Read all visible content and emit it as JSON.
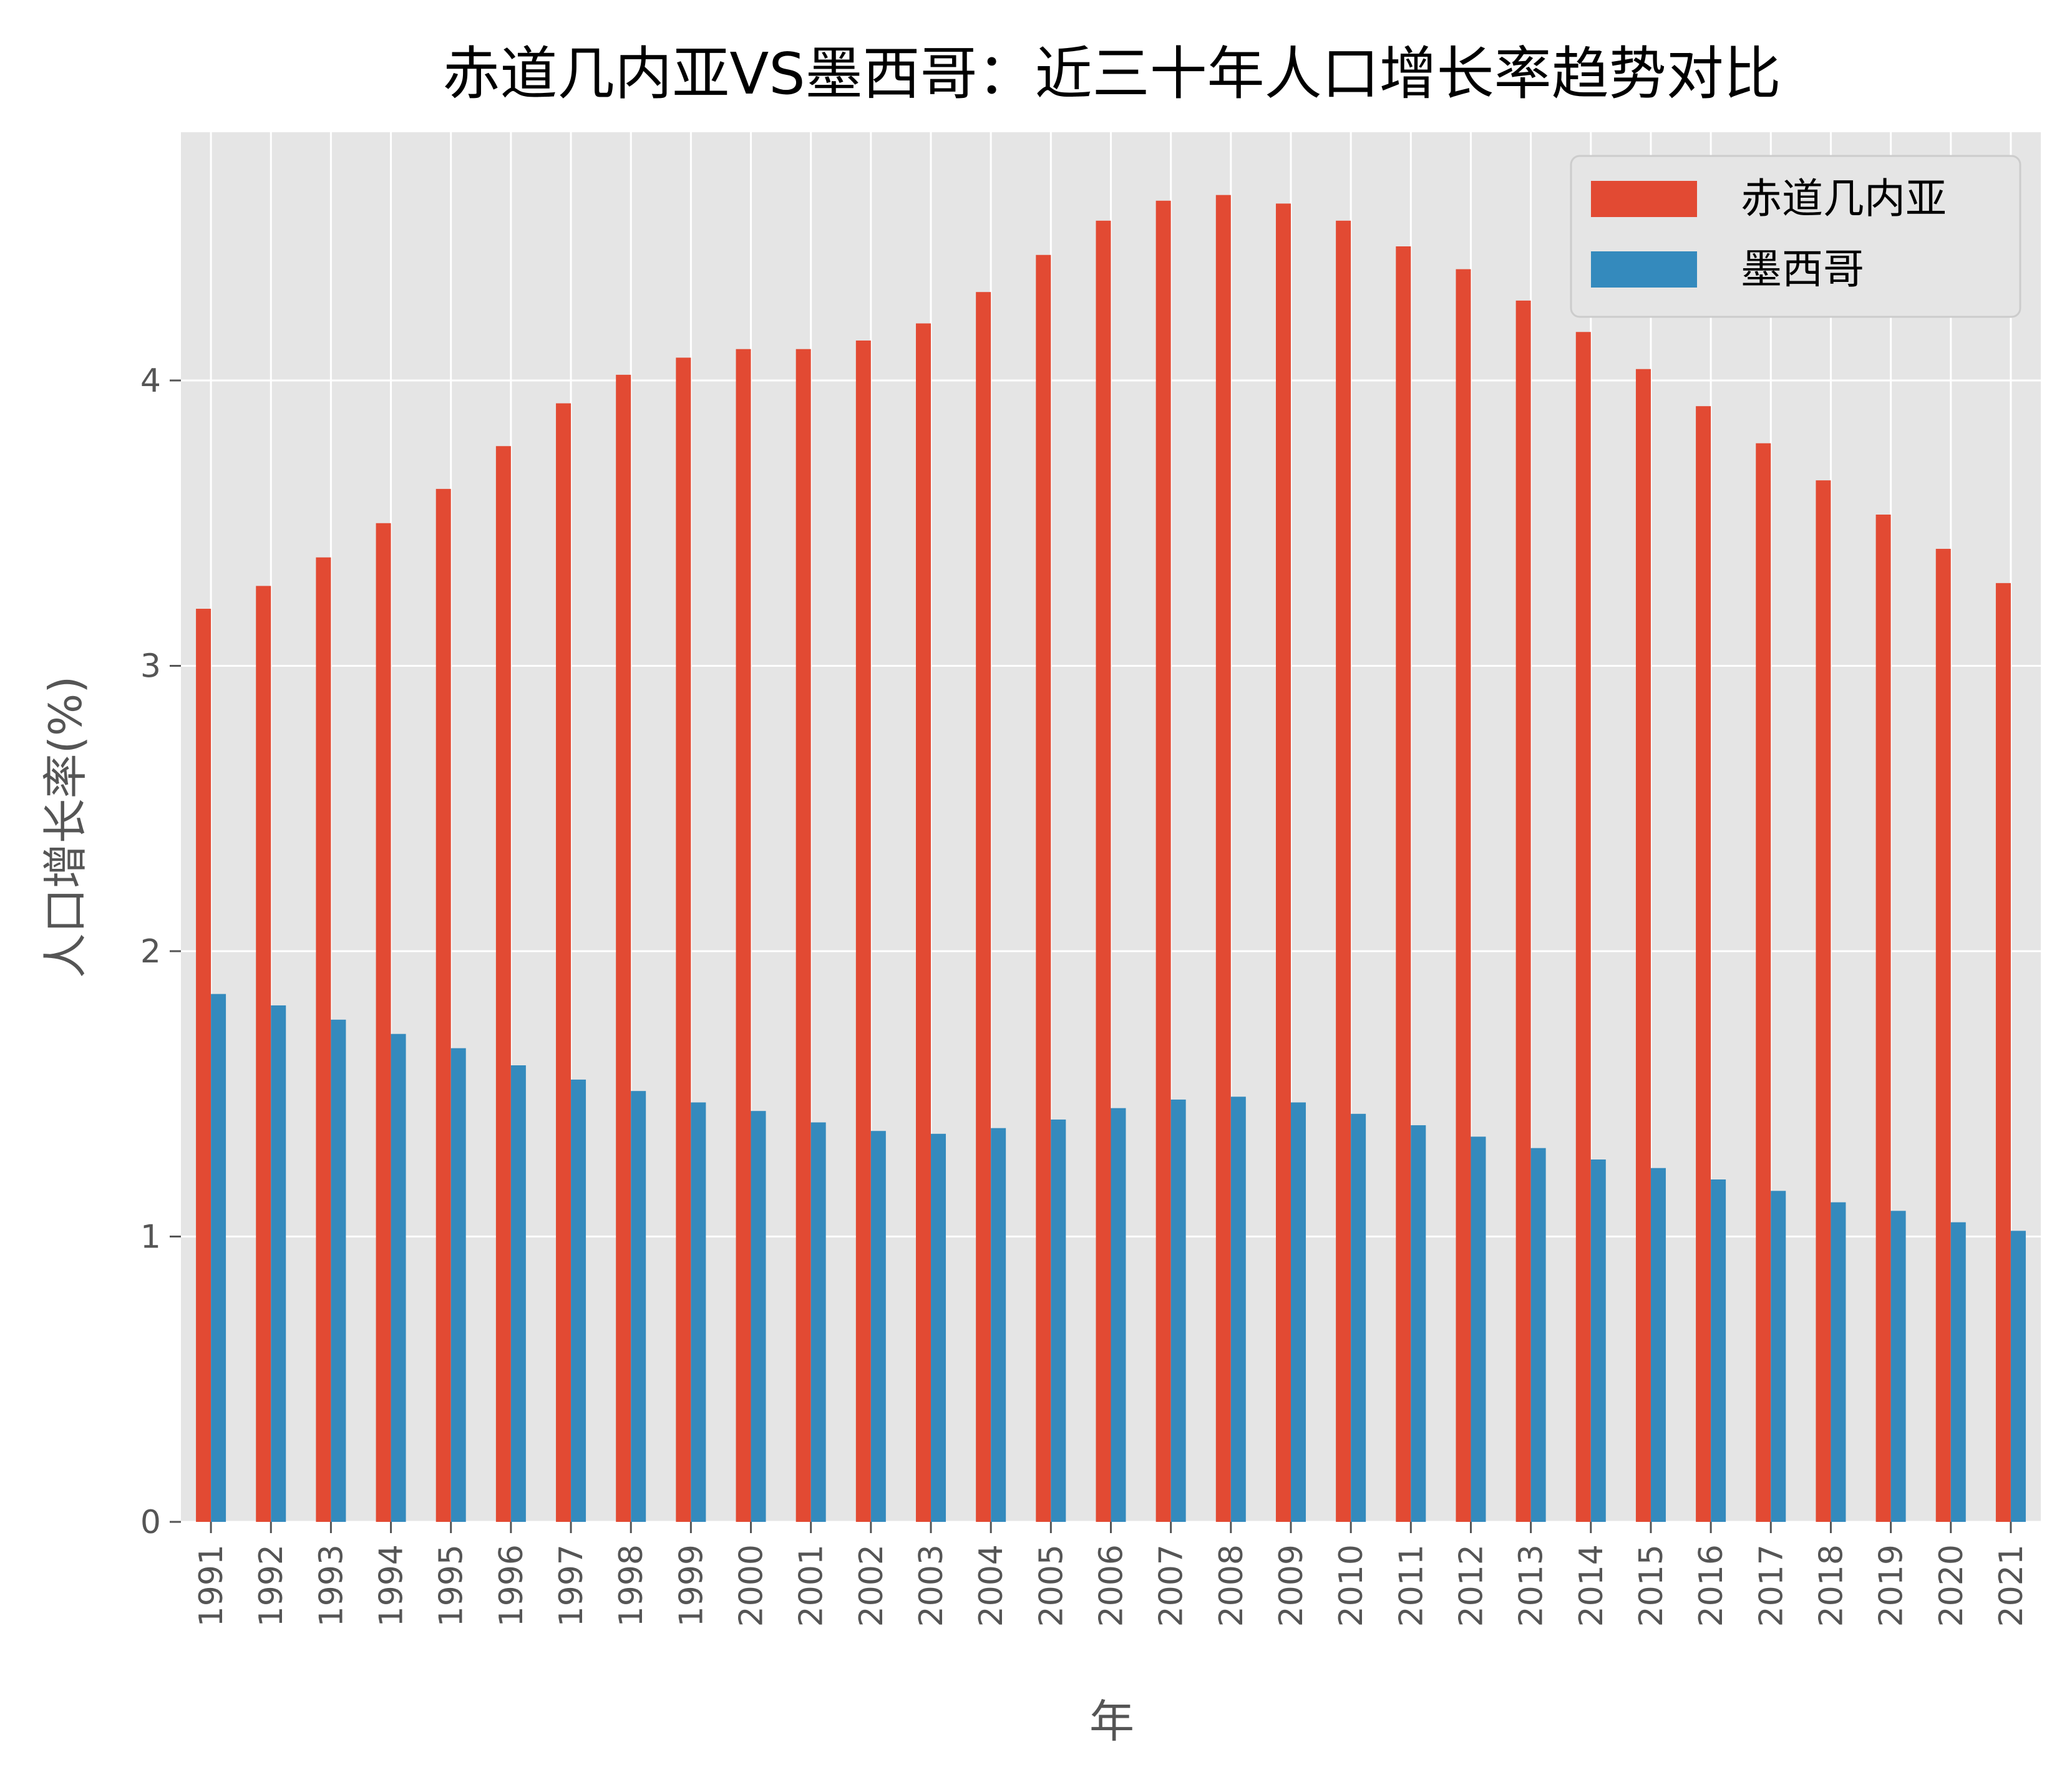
{
  "chart_data": {
    "type": "bar",
    "title": "赤道几内亚VS墨西哥：近三十年人口增长率趋势对比",
    "xlabel": "年",
    "ylabel": "人口增长率(%)",
    "ylim": [
      0,
      4.87
    ],
    "yticks": [
      0,
      1,
      2,
      3,
      4
    ],
    "grid": true,
    "legend_position": "top-right",
    "categories": [
      "1991",
      "1992",
      "1993",
      "1994",
      "1995",
      "1996",
      "1997",
      "1998",
      "1999",
      "2000",
      "2001",
      "2002",
      "2003",
      "2004",
      "2005",
      "2006",
      "2007",
      "2008",
      "2009",
      "2010",
      "2011",
      "2012",
      "2013",
      "2014",
      "2015",
      "2016",
      "2017",
      "2018",
      "2019",
      "2020",
      "2021"
    ],
    "series": [
      {
        "name": "赤道几内亚",
        "color": "#E24A33",
        "values": [
          3.2,
          3.28,
          3.38,
          3.5,
          3.62,
          3.77,
          3.92,
          4.02,
          4.08,
          4.11,
          4.11,
          4.14,
          4.2,
          4.31,
          4.44,
          4.56,
          4.63,
          4.65,
          4.62,
          4.56,
          4.47,
          4.39,
          4.28,
          4.17,
          4.04,
          3.91,
          3.78,
          3.65,
          3.53,
          3.41,
          3.29
        ]
      },
      {
        "name": "墨西哥",
        "color": "#348ABD",
        "values": [
          1.85,
          1.81,
          1.76,
          1.71,
          1.66,
          1.6,
          1.55,
          1.51,
          1.47,
          1.44,
          1.4,
          1.37,
          1.36,
          1.38,
          1.41,
          1.45,
          1.48,
          1.49,
          1.47,
          1.43,
          1.39,
          1.35,
          1.31,
          1.27,
          1.24,
          1.2,
          1.16,
          1.12,
          1.09,
          1.05,
          1.02
        ]
      }
    ]
  }
}
